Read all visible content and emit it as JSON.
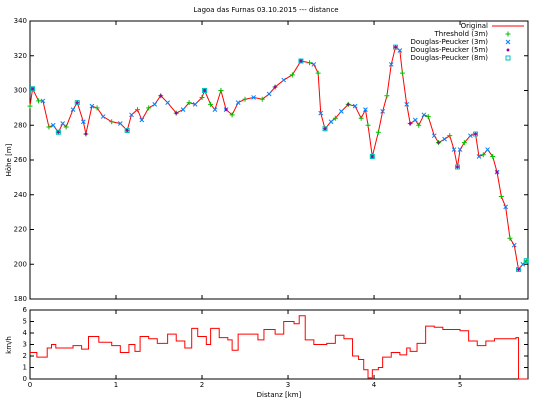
{
  "chart_data": [
    {
      "type": "line",
      "title": "Lagoa das Furnas 03.10.2015 --- distance",
      "ylabel": "Höhe [m]",
      "xlim": [
        0,
        5.79
      ],
      "xticks": [
        0,
        1,
        2,
        3,
        4,
        5
      ],
      "ylim": [
        180,
        340
      ],
      "yticks": [
        180,
        200,
        220,
        240,
        260,
        280,
        300,
        320,
        340
      ],
      "legend": "upper right",
      "series": [
        {
          "name": "Original",
          "color": "#ff0000",
          "marker": "line",
          "x": [
            0,
            0.03,
            0.1,
            0.15,
            0.22,
            0.27,
            0.33,
            0.38,
            0.42,
            0.5,
            0.55,
            0.62,
            0.65,
            0.72,
            0.78,
            0.85,
            0.95,
            1.05,
            1.13,
            1.18,
            1.25,
            1.3,
            1.38,
            1.45,
            1.52,
            1.6,
            1.7,
            1.78,
            1.85,
            1.92,
            2.0,
            2.03,
            2.1,
            2.15,
            2.22,
            2.28,
            2.35,
            2.42,
            2.5,
            2.6,
            2.7,
            2.78,
            2.85,
            2.95,
            3.05,
            3.15,
            3.25,
            3.3,
            3.35,
            3.38,
            3.43,
            3.5,
            3.55,
            3.62,
            3.7,
            3.78,
            3.85,
            3.9,
            3.93,
            3.98,
            4.05,
            4.1,
            4.15,
            4.2,
            4.25,
            4.3,
            4.33,
            4.38,
            4.42,
            4.48,
            4.52,
            4.58,
            4.63,
            4.7,
            4.75,
            4.82,
            4.88,
            4.93,
            4.97,
            5.0,
            5.05,
            5.12,
            5.18,
            5.22,
            5.27,
            5.32,
            5.38,
            5.43,
            5.48,
            5.53,
            5.58,
            5.63,
            5.68,
            5.73,
            5.77
          ],
          "values": [
            291,
            301,
            294,
            294,
            279,
            280,
            276,
            281,
            279,
            289,
            293,
            282,
            275,
            291,
            290,
            285,
            282,
            281,
            277,
            286,
            289,
            283,
            290,
            292,
            297,
            293,
            287,
            289,
            293,
            292,
            296,
            300,
            292,
            289,
            300,
            289,
            286,
            293,
            295,
            296,
            295,
            298,
            302,
            306,
            309,
            317,
            316,
            315,
            310,
            287,
            278,
            282,
            284,
            288,
            292,
            291,
            284,
            289,
            280,
            262,
            276,
            288,
            297,
            315,
            325,
            323,
            310,
            292,
            281,
            283,
            280,
            286,
            285,
            274,
            270,
            272,
            274,
            266,
            256,
            266,
            270,
            274,
            275,
            262,
            263,
            266,
            262,
            253,
            239,
            233,
            215,
            211,
            197,
            200,
            202
          ]
        },
        {
          "name": "Threshold (3m)",
          "color": "#00c000",
          "marker": "plus",
          "x": [
            0,
            0.1,
            0.22,
            0.33,
            0.42,
            0.55,
            0.65,
            0.78,
            0.95,
            1.13,
            1.25,
            1.38,
            1.52,
            1.7,
            1.85,
            2.0,
            2.1,
            2.22,
            2.35,
            2.5,
            2.7,
            2.85,
            3.05,
            3.25,
            3.35,
            3.43,
            3.55,
            3.7,
            3.85,
            3.93,
            4.05,
            4.15,
            4.25,
            4.33,
            4.42,
            4.52,
            4.63,
            4.75,
            4.88,
            4.97,
            5.05,
            5.18,
            5.27,
            5.38,
            5.48,
            5.58,
            5.68,
            5.77
          ],
          "values": [
            291,
            294,
            279,
            276,
            279,
            293,
            275,
            290,
            282,
            277,
            289,
            290,
            297,
            287,
            293,
            296,
            292,
            300,
            286,
            295,
            295,
            302,
            309,
            316,
            310,
            278,
            284,
            292,
            284,
            280,
            276,
            297,
            325,
            310,
            281,
            280,
            285,
            270,
            274,
            256,
            270,
            275,
            263,
            262,
            239,
            215,
            197,
            202
          ]
        },
        {
          "name": "Douglas-Peucker (3m)",
          "color": "#0080ff",
          "marker": "cross",
          "x": [
            0.03,
            0.15,
            0.27,
            0.38,
            0.5,
            0.62,
            0.72,
            0.85,
            1.05,
            1.18,
            1.3,
            1.45,
            1.6,
            1.78,
            1.92,
            2.03,
            2.15,
            2.28,
            2.42,
            2.6,
            2.78,
            2.95,
            3.15,
            3.3,
            3.38,
            3.5,
            3.62,
            3.78,
            3.9,
            3.98,
            4.1,
            4.2,
            4.3,
            4.38,
            4.48,
            4.58,
            4.7,
            4.82,
            4.93,
            5.0,
            5.12,
            5.22,
            5.32,
            5.43,
            5.53,
            5.63,
            5.73
          ],
          "values": [
            301,
            294,
            280,
            281,
            289,
            282,
            291,
            285,
            281,
            286,
            283,
            292,
            293,
            289,
            292,
            300,
            289,
            289,
            293,
            296,
            298,
            306,
            317,
            315,
            287,
            282,
            288,
            291,
            289,
            262,
            288,
            315,
            323,
            292,
            283,
            286,
            274,
            272,
            266,
            266,
            274,
            262,
            266,
            253,
            233,
            211,
            200
          ]
        },
        {
          "name": "Douglas-Peucker (5m)",
          "color": "#a000a0",
          "marker": "star",
          "x": [
            0.03,
            0.33,
            0.55,
            0.65,
            1.13,
            1.52,
            1.7,
            2.03,
            2.28,
            2.85,
            3.15,
            3.43,
            3.7,
            3.98,
            4.25,
            4.42,
            4.75,
            4.97,
            5.18,
            5.43,
            5.68
          ],
          "values": [
            301,
            276,
            293,
            275,
            277,
            297,
            287,
            300,
            289,
            302,
            317,
            278,
            292,
            262,
            325,
            281,
            270,
            256,
            275,
            253,
            197
          ]
        },
        {
          "name": "Douglas-Peucker (8m)",
          "color": "#00c0c0",
          "marker": "square",
          "x": [
            0.03,
            0.33,
            0.55,
            1.13,
            2.03,
            3.15,
            3.43,
            3.98,
            4.25,
            4.97,
            5.18,
            5.68,
            5.77
          ],
          "values": [
            301,
            276,
            293,
            277,
            300,
            317,
            278,
            262,
            325,
            256,
            275,
            197,
            202
          ]
        }
      ]
    },
    {
      "type": "step",
      "xlabel": "Distanz [km]",
      "ylabel": "km/h",
      "color": "#ff0000",
      "xlim": [
        0,
        5.79
      ],
      "xticks": [
        0,
        1,
        2,
        3,
        4,
        5
      ],
      "ylim": [
        0,
        6
      ],
      "yticks": [
        0,
        1,
        2,
        3,
        4,
        5,
        6
      ],
      "x": [
        0,
        0.08,
        0.2,
        0.25,
        0.3,
        0.4,
        0.5,
        0.6,
        0.68,
        0.8,
        0.95,
        1.05,
        1.15,
        1.22,
        1.28,
        1.38,
        1.48,
        1.6,
        1.7,
        1.8,
        1.88,
        1.95,
        2.05,
        2.1,
        2.2,
        2.3,
        2.35,
        2.42,
        2.55,
        2.65,
        2.72,
        2.85,
        2.95,
        3.07,
        3.13,
        3.2,
        3.3,
        3.45,
        3.55,
        3.65,
        3.75,
        3.82,
        3.88,
        3.93,
        3.98,
        4.05,
        4.1,
        4.2,
        4.3,
        4.38,
        4.42,
        4.5,
        4.6,
        4.7,
        4.8,
        5.0,
        5.1,
        5.2,
        5.3,
        5.4,
        5.5,
        5.65,
        5.68
      ],
      "values": [
        2.3,
        1.9,
        2.7,
        3.0,
        2.7,
        2.7,
        2.9,
        2.6,
        3.7,
        3.2,
        2.9,
        2.3,
        3.0,
        2.4,
        3.7,
        3.5,
        3.1,
        3.9,
        3.3,
        2.7,
        4.4,
        3.7,
        3.0,
        4.4,
        3.6,
        3.4,
        2.5,
        3.9,
        3.9,
        3.4,
        4.3,
        3.9,
        5.0,
        4.8,
        5.5,
        3.4,
        3.0,
        3.1,
        3.8,
        3.5,
        2.0,
        1.7,
        0.8,
        0.1,
        0.8,
        1.0,
        1.9,
        2.3,
        2.1,
        2.7,
        2.4,
        3.1,
        4.6,
        4.5,
        4.3,
        4.2,
        3.3,
        2.9,
        3.3,
        3.5,
        3.5,
        3.6,
        0.0
      ]
    }
  ]
}
